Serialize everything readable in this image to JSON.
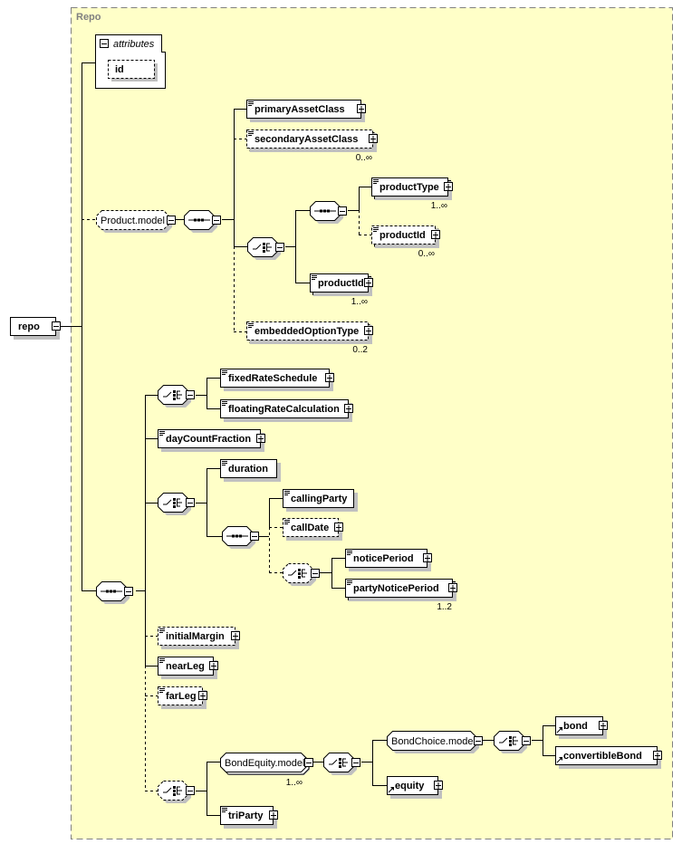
{
  "frame": {
    "title": "Repo",
    "background": "#ffffc8",
    "border": "#808080"
  },
  "attributes": {
    "label": "attributes",
    "items": [
      "id"
    ]
  },
  "nodes": {
    "repo": {
      "label": "repo"
    },
    "product_model": {
      "label": "Product.model"
    },
    "primaryAssetClass": {
      "label": "primaryAssetClass"
    },
    "secondaryAssetClass": {
      "label": "secondaryAssetClass",
      "occurs": "0..∞"
    },
    "productType": {
      "label": "productType",
      "occurs": "1..∞"
    },
    "productId_opt": {
      "label": "productId",
      "occurs": "0..∞"
    },
    "productId": {
      "label": "productId",
      "occurs": "1..∞"
    },
    "embeddedOptionType": {
      "label": "embeddedOptionType",
      "occurs": "0..2"
    },
    "fixedRateSchedule": {
      "label": "fixedRateSchedule"
    },
    "floatingRateCalculation": {
      "label": "floatingRateCalculation"
    },
    "dayCountFraction": {
      "label": "dayCountFraction"
    },
    "duration": {
      "label": "duration"
    },
    "callingParty": {
      "label": "callingParty"
    },
    "callDate": {
      "label": "callDate"
    },
    "noticePeriod": {
      "label": "noticePeriod"
    },
    "partyNoticePeriod": {
      "label": "partyNoticePeriod",
      "occurs": "1..2"
    },
    "initialMargin": {
      "label": "initialMargin"
    },
    "nearLeg": {
      "label": "nearLeg"
    },
    "farLeg": {
      "label": "farLeg"
    },
    "bondEquity_model": {
      "label": "BondEquity.model",
      "occurs": "1..∞"
    },
    "bondChoice_model": {
      "label": "BondChoice.model"
    },
    "bond": {
      "label": "bond"
    },
    "convertibleBond": {
      "label": "convertibleBond"
    },
    "equity": {
      "label": "equity"
    },
    "triParty": {
      "label": "triParty"
    }
  }
}
